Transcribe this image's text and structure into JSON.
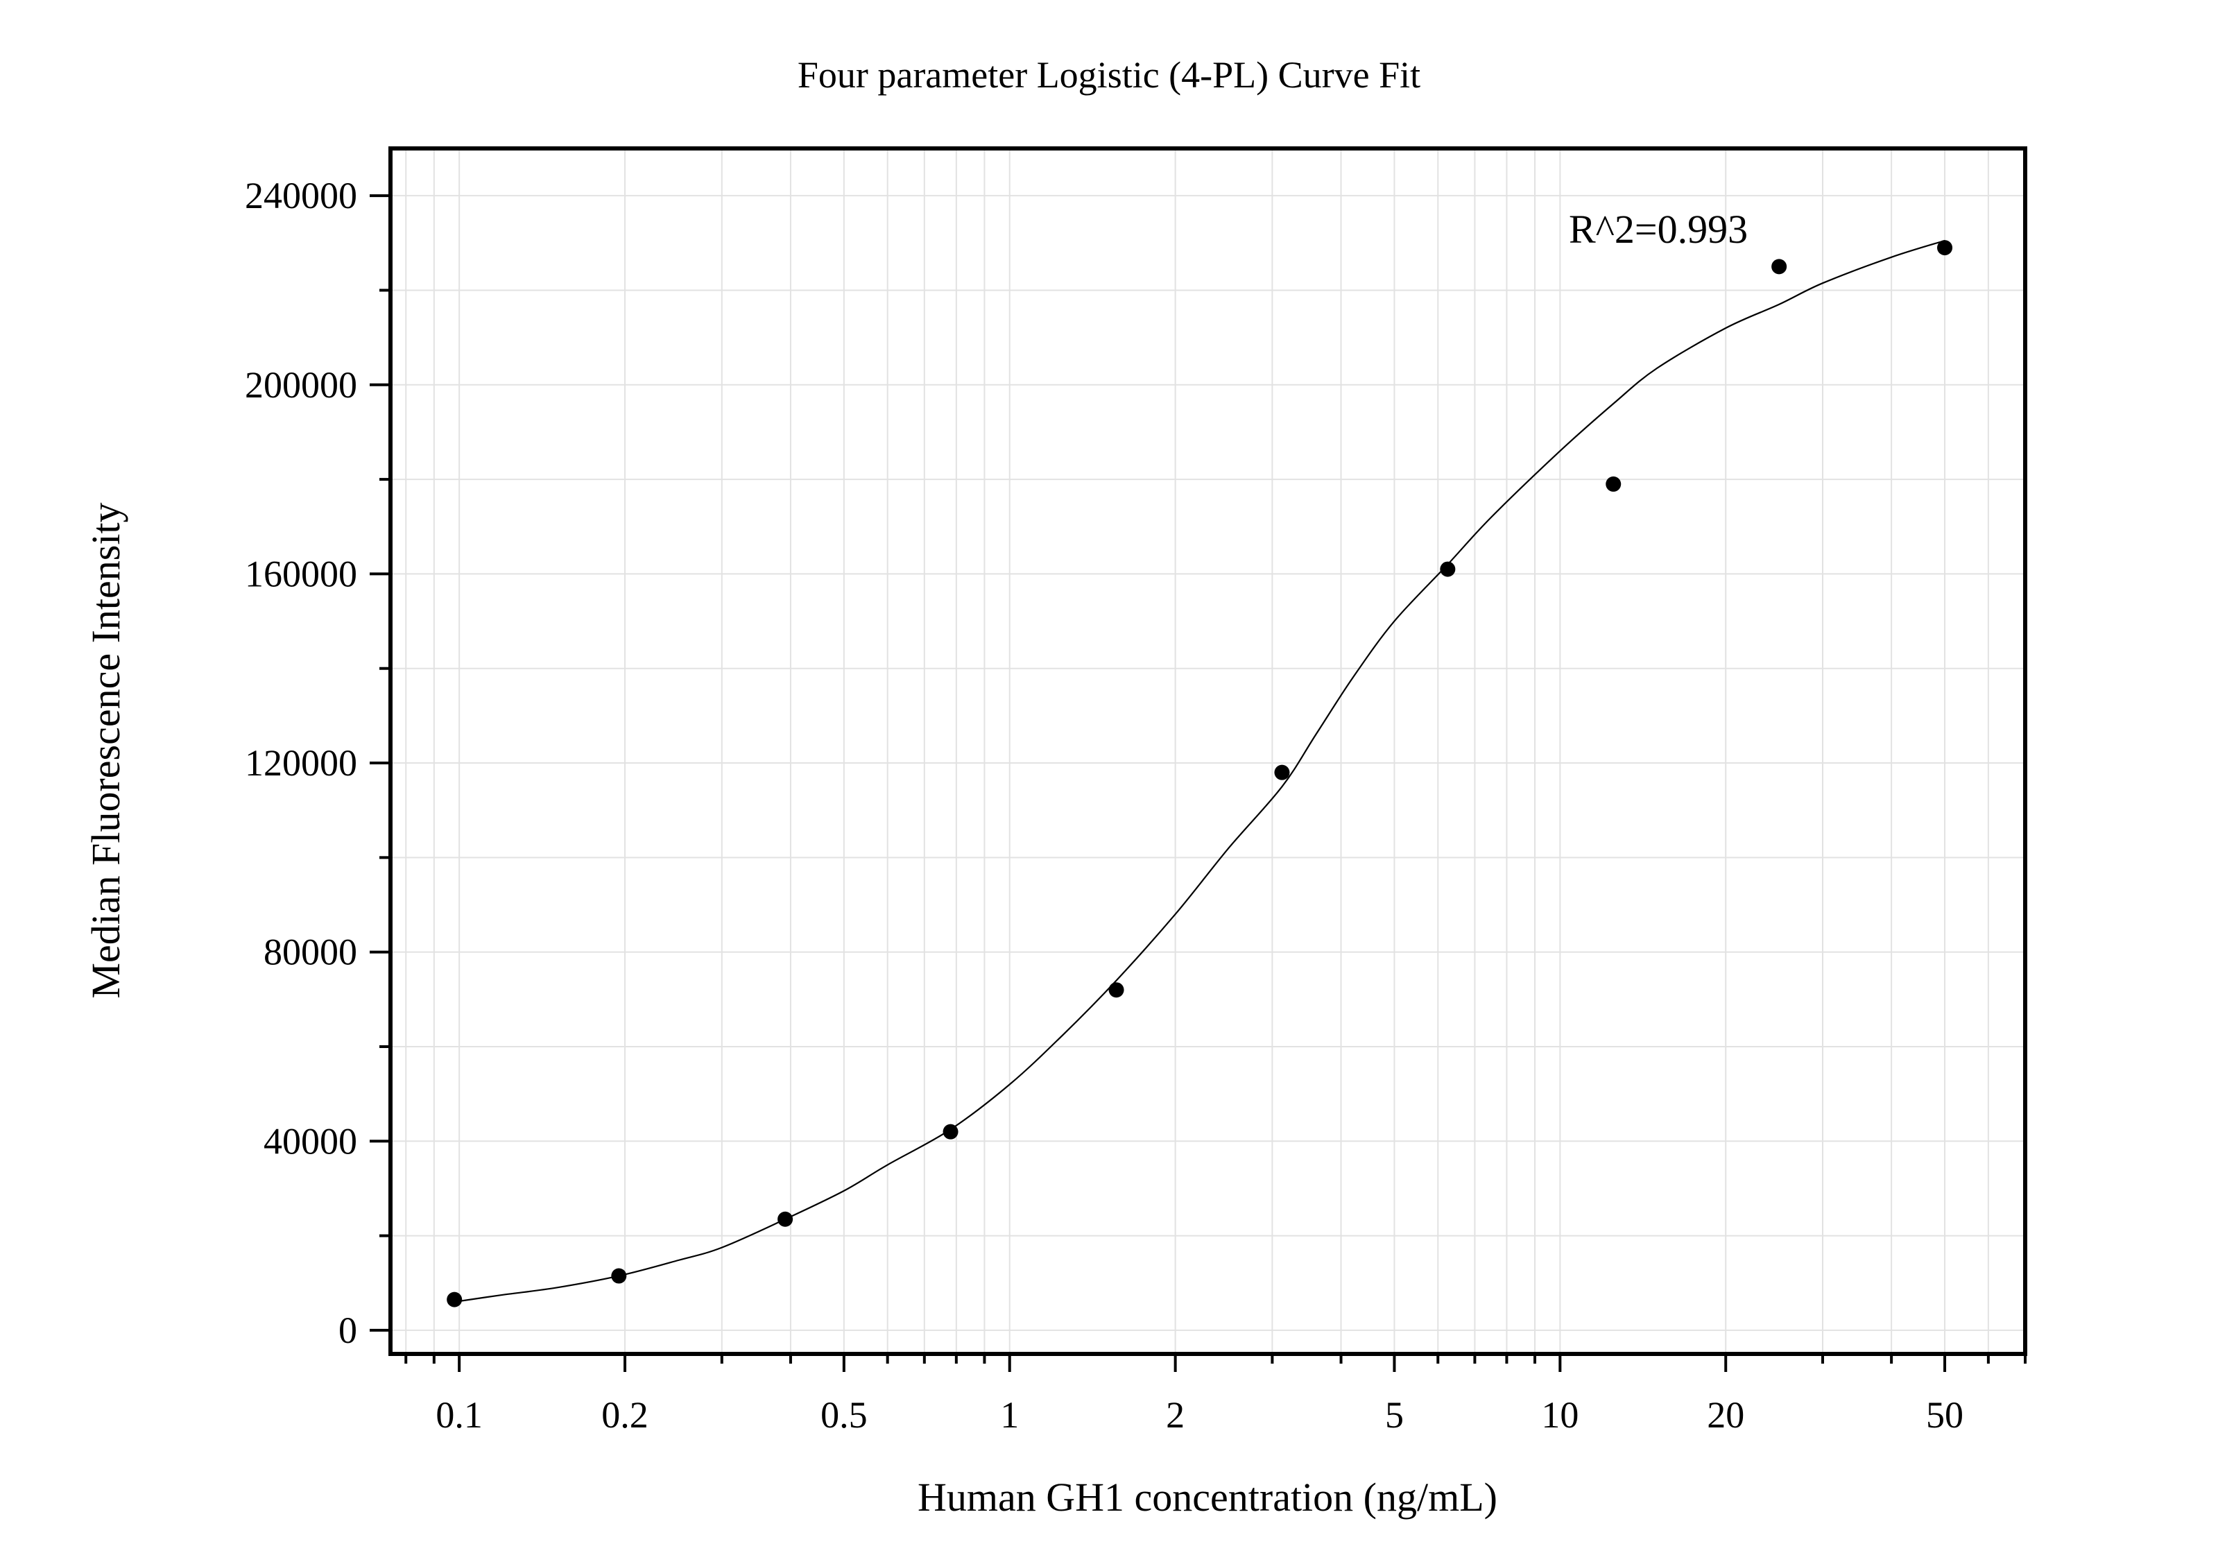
{
  "chart_data": {
    "type": "scatter",
    "title": "Four parameter Logistic (4-PL) Curve Fit",
    "xlabel": "Human GH1 concentration (ng/mL)",
    "ylabel": "Median Fluorescence Intensity",
    "x_scale": "log",
    "xlim": [
      0.075,
      70
    ],
    "ylim": [
      -5000,
      250000
    ],
    "x_ticks": [
      0.1,
      0.2,
      0.5,
      1,
      2,
      5,
      10,
      20,
      50
    ],
    "x_tick_labels": [
      "0.1",
      "0.2",
      "0.5",
      "1",
      "2",
      "5",
      "10",
      "20",
      "50"
    ],
    "y_ticks": [
      0,
      40000,
      80000,
      120000,
      160000,
      200000,
      240000
    ],
    "y_tick_labels": [
      "0",
      "40000",
      "80000",
      "120000",
      "160000",
      "200000",
      "240000"
    ],
    "grid": true,
    "series": [
      {
        "kind": "points",
        "x": [
          0.098,
          0.195,
          0.391,
          0.781,
          1.5625,
          3.125,
          6.25,
          12.5,
          25,
          50
        ],
        "y": [
          6500,
          11500,
          23500,
          42000,
          72000,
          118000,
          161000,
          179000,
          225000,
          229000
        ]
      },
      {
        "kind": "fit-curve",
        "x": [
          0.098,
          0.12,
          0.15,
          0.195,
          0.25,
          0.3,
          0.391,
          0.5,
          0.6,
          0.781,
          1.0,
          1.25,
          1.5625,
          2.0,
          2.5,
          3.125,
          3.6,
          4.2,
          5.0,
          6.25,
          7.5,
          10,
          12.5,
          15,
          20,
          25,
          30,
          40,
          50
        ],
        "y": [
          6000,
          7500,
          9000,
          11500,
          14800,
          17500,
          23500,
          29500,
          35000,
          42500,
          52000,
          62500,
          74000,
          88000,
          102000,
          115000,
          126000,
          138000,
          150000,
          162000,
          172000,
          186000,
          196000,
          203500,
          212000,
          217000,
          221500,
          227000,
          230500
        ]
      }
    ],
    "annotations": [
      "R^2=0.993"
    ]
  }
}
